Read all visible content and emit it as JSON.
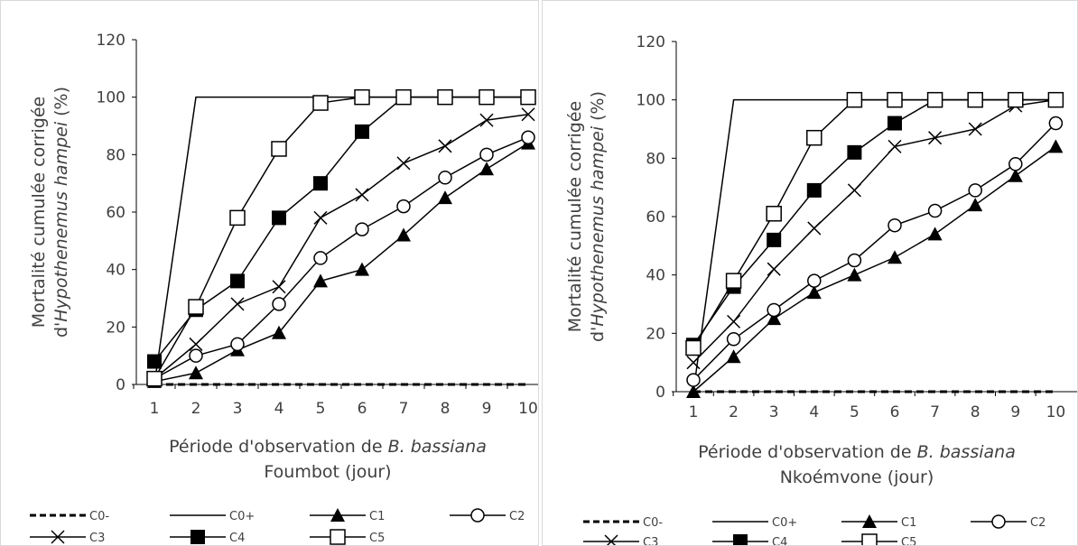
{
  "chart_data": [
    {
      "type": "line",
      "ylabel_line1": "Mortalité cumulée corrigée",
      "ylabel_line2_prefix": "d'",
      "ylabel_line2_italic": "Hypothenemus hampei",
      "ylabel_line2_suffix": " (%)",
      "xlabel_prefix": "Période d'observation de ",
      "xlabel_italic": "B. bassiana",
      "xlabel_line2": "Foumbot (jour)",
      "x": [
        1,
        2,
        3,
        4,
        5,
        6,
        7,
        8,
        9,
        10
      ],
      "x_ticks": [
        "1",
        "2",
        "3",
        "4",
        "5",
        "6",
        "7",
        "8",
        "9",
        "10"
      ],
      "y_ticks": [
        "0",
        "20",
        "40",
        "60",
        "80",
        "100",
        "120"
      ],
      "ylim": [
        0,
        120
      ],
      "grid": false,
      "legend_position": "bottom",
      "series": [
        {
          "name": "C0-",
          "marker": "none",
          "dash": true,
          "values": [
            0,
            0,
            0,
            0,
            0,
            0,
            0,
            0,
            0,
            0
          ]
        },
        {
          "name": "C0+",
          "marker": "none",
          "dash": false,
          "values": [
            0,
            100,
            100,
            100,
            100,
            100,
            100,
            100,
            100,
            100
          ]
        },
        {
          "name": "C1",
          "marker": "triangle",
          "dash": false,
          "values": [
            1,
            4,
            12,
            18,
            36,
            40,
            52,
            65,
            75,
            84
          ]
        },
        {
          "name": "C2",
          "marker": "circle",
          "dash": false,
          "values": [
            2,
            10,
            14,
            28,
            44,
            54,
            62,
            72,
            80,
            86
          ]
        },
        {
          "name": "C3",
          "marker": "cross",
          "dash": false,
          "values": [
            2,
            14,
            28,
            34,
            58,
            66,
            77,
            83,
            92,
            94
          ]
        },
        {
          "name": "C4",
          "marker": "square-filled",
          "dash": false,
          "values": [
            8,
            26,
            36,
            58,
            70,
            88,
            100,
            100,
            100,
            100
          ]
        },
        {
          "name": "C5",
          "marker": "square-open",
          "dash": false,
          "values": [
            2,
            27,
            58,
            82,
            98,
            100,
            100,
            100,
            100,
            100
          ]
        }
      ]
    },
    {
      "type": "line",
      "ylabel_line1": "Mortalité cumulée corrigée",
      "ylabel_line2_prefix": "d'",
      "ylabel_line2_italic": "Hypothenemus hampei",
      "ylabel_line2_suffix": " (%)",
      "xlabel_prefix": "Période d'observation de ",
      "xlabel_italic": "B. bassiana",
      "xlabel_line2": "Nkoémvone (jour)",
      "x": [
        1,
        2,
        3,
        4,
        5,
        6,
        7,
        8,
        9,
        10
      ],
      "x_ticks": [
        "1",
        "2",
        "3",
        "4",
        "5",
        "6",
        "7",
        "8",
        "9",
        "10"
      ],
      "y_ticks": [
        "0",
        "20",
        "40",
        "60",
        "80",
        "100",
        "120"
      ],
      "ylim": [
        0,
        120
      ],
      "grid": false,
      "legend_position": "bottom",
      "series": [
        {
          "name": "C0-",
          "marker": "none",
          "dash": true,
          "values": [
            0,
            0,
            0,
            0,
            0,
            0,
            0,
            0,
            0,
            0
          ]
        },
        {
          "name": "C0+",
          "marker": "none",
          "dash": false,
          "values": [
            0,
            100,
            100,
            100,
            100,
            100,
            100,
            100,
            100,
            100
          ]
        },
        {
          "name": "C1",
          "marker": "triangle",
          "dash": false,
          "values": [
            0,
            12,
            25,
            34,
            40,
            46,
            54,
            64,
            74,
            84
          ]
        },
        {
          "name": "C2",
          "marker": "circle",
          "dash": false,
          "values": [
            4,
            18,
            28,
            38,
            45,
            57,
            62,
            69,
            78,
            92
          ]
        },
        {
          "name": "C3",
          "marker": "cross",
          "dash": false,
          "values": [
            10,
            24,
            42,
            56,
            69,
            84,
            87,
            90,
            98,
            100
          ]
        },
        {
          "name": "C4",
          "marker": "square-filled",
          "dash": false,
          "values": [
            16,
            36,
            52,
            69,
            82,
            92,
            100,
            100,
            100,
            100
          ]
        },
        {
          "name": "C5",
          "marker": "square-open",
          "dash": false,
          "values": [
            15,
            38,
            61,
            87,
            100,
            100,
            100,
            100,
            100,
            100
          ]
        }
      ]
    }
  ]
}
